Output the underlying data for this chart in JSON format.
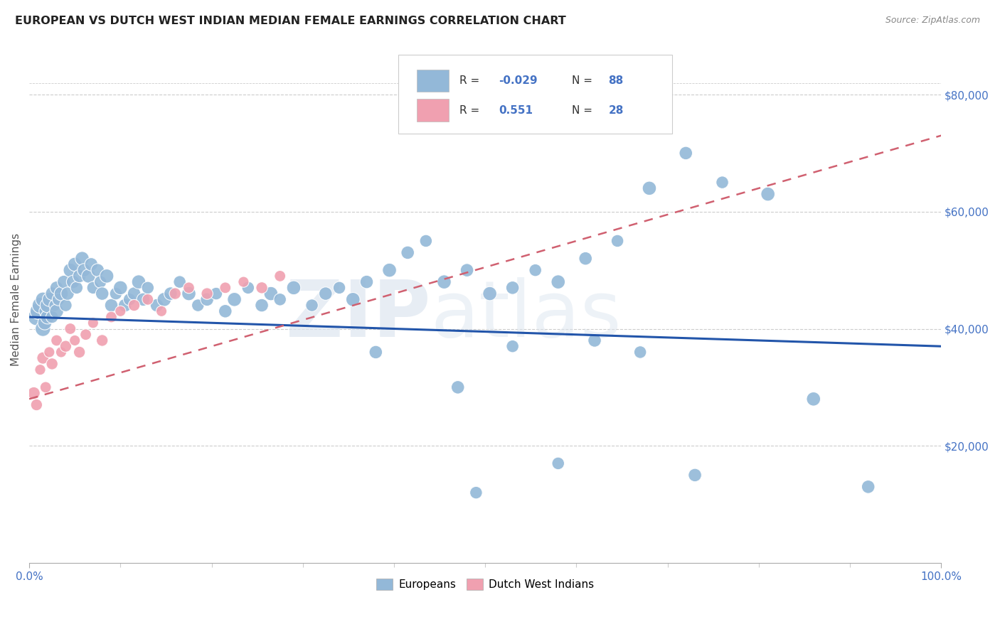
{
  "title": "EUROPEAN VS DUTCH WEST INDIAN MEDIAN FEMALE EARNINGS CORRELATION CHART",
  "source": "Source: ZipAtlas.com",
  "ylabel": "Median Female Earnings",
  "xlim": [
    0,
    1.0
  ],
  "ylim": [
    0,
    90000
  ],
  "ytick_values": [
    20000,
    40000,
    60000,
    80000
  ],
  "ytick_labels": [
    "$20,000",
    "$40,000",
    "$60,000",
    "$80,000"
  ],
  "background_color": "#ffffff",
  "grid_color": "#cccccc",
  "european_color": "#93b8d8",
  "dutch_color": "#f0a0b0",
  "trendline_european_color": "#2255aa",
  "trendline_dutch_color": "#d06070",
  "legend_label_european": "Europeans",
  "legend_label_dutch": "Dutch West Indians",
  "R_european": -0.029,
  "N_european": 88,
  "R_dutch": 0.551,
  "N_dutch": 28,
  "title_color": "#222222",
  "axis_label_color": "#555555",
  "right_tick_color": "#4472c4",
  "xtick_color": "#4472c4",
  "eu_x": [
    0.008,
    0.01,
    0.012,
    0.015,
    0.015,
    0.017,
    0.018,
    0.02,
    0.02,
    0.022,
    0.025,
    0.025,
    0.028,
    0.03,
    0.03,
    0.032,
    0.035,
    0.038,
    0.04,
    0.042,
    0.045,
    0.048,
    0.05,
    0.052,
    0.055,
    0.058,
    0.06,
    0.065,
    0.068,
    0.07,
    0.075,
    0.078,
    0.08,
    0.085,
    0.09,
    0.095,
    0.1,
    0.105,
    0.11,
    0.115,
    0.12,
    0.125,
    0.13,
    0.14,
    0.148,
    0.155,
    0.165,
    0.175,
    0.185,
    0.195,
    0.205,
    0.215,
    0.225,
    0.24,
    0.255,
    0.265,
    0.275,
    0.29,
    0.31,
    0.325,
    0.34,
    0.355,
    0.37,
    0.395,
    0.415,
    0.435,
    0.455,
    0.48,
    0.505,
    0.53,
    0.555,
    0.58,
    0.61,
    0.645,
    0.68,
    0.72,
    0.76,
    0.81,
    0.86,
    0.92,
    0.53,
    0.62,
    0.67,
    0.73,
    0.58,
    0.47,
    0.49,
    0.38
  ],
  "eu_y": [
    42000,
    43000,
    44000,
    40000,
    45000,
    41000,
    43000,
    42000,
    44000,
    45000,
    46000,
    42000,
    44000,
    43000,
    47000,
    45000,
    46000,
    48000,
    44000,
    46000,
    50000,
    48000,
    51000,
    47000,
    49000,
    52000,
    50000,
    49000,
    51000,
    47000,
    50000,
    48000,
    46000,
    49000,
    44000,
    46000,
    47000,
    44000,
    45000,
    46000,
    48000,
    45000,
    47000,
    44000,
    45000,
    46000,
    48000,
    46000,
    44000,
    45000,
    46000,
    43000,
    45000,
    47000,
    44000,
    46000,
    45000,
    47000,
    44000,
    46000,
    47000,
    45000,
    48000,
    50000,
    53000,
    55000,
    48000,
    50000,
    46000,
    47000,
    50000,
    48000,
    52000,
    55000,
    64000,
    70000,
    65000,
    63000,
    28000,
    13000,
    37000,
    38000,
    36000,
    15000,
    17000,
    30000,
    12000,
    36000
  ],
  "eu_sizes": [
    300,
    280,
    260,
    240,
    220,
    200,
    180,
    200,
    220,
    200,
    180,
    160,
    140,
    200,
    180,
    160,
    200,
    180,
    160,
    180,
    200,
    180,
    200,
    160,
    180,
    200,
    180,
    200,
    180,
    160,
    180,
    160,
    180,
    200,
    180,
    160,
    200,
    180,
    160,
    180,
    200,
    180,
    160,
    180,
    200,
    180,
    160,
    200,
    160,
    180,
    160,
    180,
    200,
    160,
    180,
    200,
    160,
    200,
    160,
    180,
    160,
    200,
    180,
    200,
    180,
    160,
    200,
    180,
    200,
    180,
    160,
    200,
    180,
    160,
    200,
    180,
    160,
    200,
    200,
    180,
    160,
    180,
    160,
    180,
    160,
    180,
    160,
    180
  ],
  "du_x": [
    0.005,
    0.008,
    0.012,
    0.015,
    0.018,
    0.022,
    0.025,
    0.03,
    0.035,
    0.04,
    0.045,
    0.05,
    0.055,
    0.062,
    0.07,
    0.08,
    0.09,
    0.1,
    0.115,
    0.13,
    0.145,
    0.16,
    0.175,
    0.195,
    0.215,
    0.235,
    0.255,
    0.275
  ],
  "du_y": [
    29000,
    27000,
    33000,
    35000,
    30000,
    36000,
    34000,
    38000,
    36000,
    37000,
    40000,
    38000,
    36000,
    39000,
    41000,
    38000,
    42000,
    43000,
    44000,
    45000,
    43000,
    46000,
    47000,
    46000,
    47000,
    48000,
    47000,
    49000
  ],
  "du_sizes": [
    160,
    140,
    120,
    150,
    130,
    120,
    140,
    130,
    120,
    140,
    130,
    120,
    140,
    130,
    120,
    140,
    130,
    120,
    140,
    130,
    120,
    140,
    130,
    140,
    130,
    120,
    140,
    130
  ],
  "eu_trend_x": [
    0.0,
    1.0
  ],
  "eu_trend_y": [
    42000,
    37000
  ],
  "du_trend_x": [
    0.0,
    1.0
  ],
  "du_trend_y": [
    28000,
    73000
  ]
}
